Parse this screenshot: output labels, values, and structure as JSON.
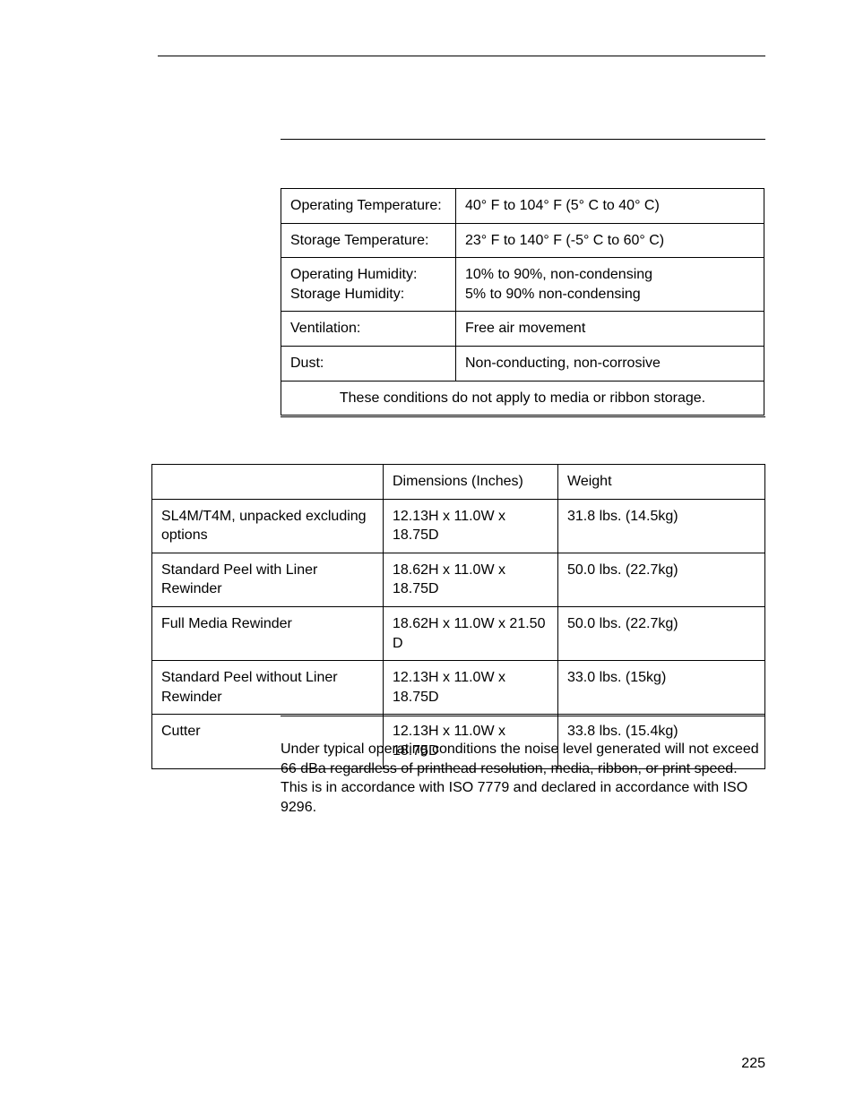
{
  "pageNumber": "225",
  "table1": {
    "type": "table",
    "rows": [
      [
        "Operating Temperature:",
        "40° F to 104° F (5° C to 40° C)"
      ],
      [
        "Storage Temperature:",
        "23° F to 140° F (-5° C to 60° C)"
      ],
      [
        "Operating Humidity:\nStorage Humidity:",
        "10% to 90%, non-condensing\n5% to 90% non-condensing"
      ],
      [
        "Ventilation:",
        "Free air movement"
      ],
      [
        "Dust:",
        "Non-conducting, non-corrosive"
      ]
    ],
    "footer": "These conditions do not apply to media or ribbon storage."
  },
  "table2": {
    "type": "table",
    "header": [
      "",
      "Dimensions (Inches)",
      "Weight"
    ],
    "rows": [
      [
        "SL4M/T4M, unpacked excluding options",
        "12.13H x 11.0W x 18.75D",
        "31.8 lbs. (14.5kg)"
      ],
      [
        "Standard Peel with Liner Rewinder",
        "18.62H x 11.0W x 18.75D",
        "50.0 lbs. (22.7kg)"
      ],
      [
        "Full Media Rewinder",
        "18.62H x 11.0W x 21.50 D",
        "50.0 lbs. (22.7kg)"
      ],
      [
        "Standard Peel without Liner Rewinder",
        "12.13H x 11.0W x 18.75D",
        "33.0 lbs. (15kg)"
      ],
      [
        "Cutter",
        "12.13H x 11.0W x 18.75D",
        "33.8 lbs. (15.4kg)"
      ]
    ]
  },
  "acousticText": "Under typical operating conditions the noise level generated will not exceed 66 dBa regardless of printhead resolution, media, ribbon, or print speed. This is in accordance with ISO 7779 and declared in accordance with ISO 9296.",
  "styling": {
    "pageWidth": 954,
    "pageHeight": 1235,
    "background": "#ffffff",
    "textColor": "#000000",
    "borderColor": "#000000",
    "fontFamily": "Arial, Helvetica, sans-serif",
    "fontSize": 16,
    "lineHeight": 1.35
  }
}
